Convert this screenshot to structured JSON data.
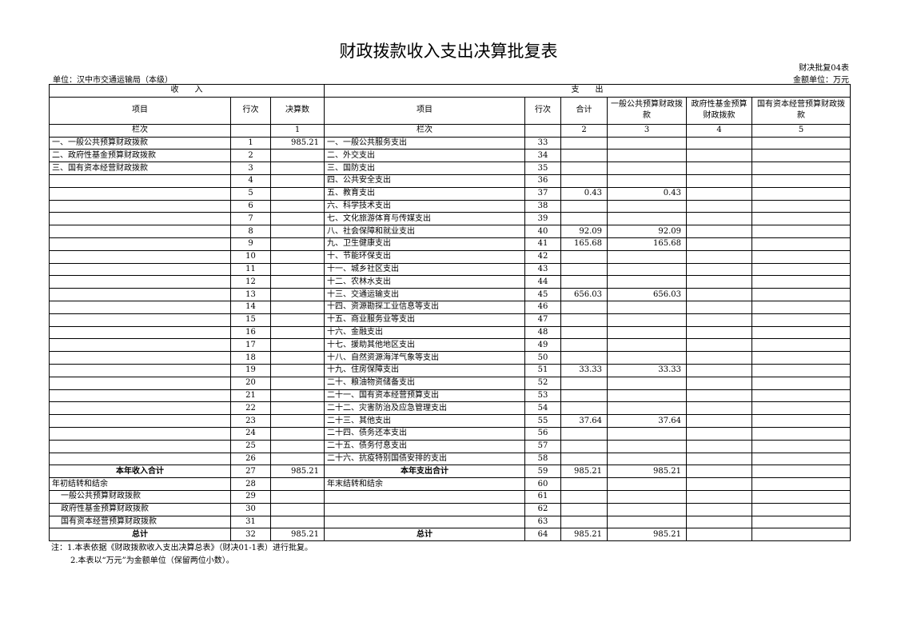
{
  "title": "财政拨款收入支出决算批复表",
  "form_code": "财决批复04表",
  "unit": "单位：汉中市交通运输局（本级）",
  "money_unit": "金额单位：万元",
  "header": {
    "income": "收　　入",
    "expense": "支　　出",
    "cols": [
      "项目",
      "行次",
      "决算数",
      "项目",
      "行次",
      "合计",
      "一般公共预算财政拨款",
      "政府性基金预算财政拨款",
      "国有资本经营预算财政拨款"
    ],
    "col_index": [
      "栏次",
      "",
      "1",
      "栏次",
      "",
      "2",
      "3",
      "4",
      "5"
    ]
  },
  "rows": [
    [
      "一、一般公共预算财政拨款",
      "1",
      "985.21",
      "一、一般公共服务支出",
      "33",
      "",
      "",
      "",
      ""
    ],
    [
      "二、政府性基金预算财政拨款",
      "2",
      "",
      "二、外交支出",
      "34",
      "",
      "",
      "",
      ""
    ],
    [
      "三、国有资本经营财政拨款",
      "3",
      "",
      "三、国防支出",
      "35",
      "",
      "",
      "",
      ""
    ],
    [
      "",
      "4",
      "",
      "四、公共安全支出",
      "36",
      "",
      "",
      "",
      ""
    ],
    [
      "",
      "5",
      "",
      "五、教育支出",
      "37",
      "0.43",
      "0.43",
      "",
      ""
    ],
    [
      "",
      "6",
      "",
      "六、科学技术支出",
      "38",
      "",
      "",
      "",
      ""
    ],
    [
      "",
      "7",
      "",
      "七、文化旅游体育与传媒支出",
      "39",
      "",
      "",
      "",
      ""
    ],
    [
      "",
      "8",
      "",
      "八、社会保障和就业支出",
      "40",
      "92.09",
      "92.09",
      "",
      ""
    ],
    [
      "",
      "9",
      "",
      "九、卫生健康支出",
      "41",
      "165.68",
      "165.68",
      "",
      ""
    ],
    [
      "",
      "10",
      "",
      "十、节能环保支出",
      "42",
      "",
      "",
      "",
      ""
    ],
    [
      "",
      "11",
      "",
      "十一、城乡社区支出",
      "43",
      "",
      "",
      "",
      ""
    ],
    [
      "",
      "12",
      "",
      "十二、农林水支出",
      "44",
      "",
      "",
      "",
      ""
    ],
    [
      "",
      "13",
      "",
      "十三、交通运输支出",
      "45",
      "656.03",
      "656.03",
      "",
      ""
    ],
    [
      "",
      "14",
      "",
      "十四、资源勘探工业信息等支出",
      "46",
      "",
      "",
      "",
      ""
    ],
    [
      "",
      "15",
      "",
      "十五、商业服务业等支出",
      "47",
      "",
      "",
      "",
      ""
    ],
    [
      "",
      "16",
      "",
      "十六、金融支出",
      "48",
      "",
      "",
      "",
      ""
    ],
    [
      "",
      "17",
      "",
      "十七、援助其他地区支出",
      "49",
      "",
      "",
      "",
      ""
    ],
    [
      "",
      "18",
      "",
      "十八、自然资源海洋气象等支出",
      "50",
      "",
      "",
      "",
      ""
    ],
    [
      "",
      "19",
      "",
      "十九、住房保障支出",
      "51",
      "33.33",
      "33.33",
      "",
      ""
    ],
    [
      "",
      "20",
      "",
      "二十、粮油物资储备支出",
      "52",
      "",
      "",
      "",
      ""
    ],
    [
      "",
      "21",
      "",
      "二十一、国有资本经营预算支出",
      "53",
      "",
      "",
      "",
      ""
    ],
    [
      "",
      "22",
      "",
      "二十二、灾害防治及应急管理支出",
      "54",
      "",
      "",
      "",
      ""
    ],
    [
      "",
      "23",
      "",
      "二十三、其他支出",
      "55",
      "37.64",
      "37.64",
      "",
      ""
    ],
    [
      "",
      "24",
      "",
      "二十四、债务还本支出",
      "56",
      "",
      "",
      "",
      ""
    ],
    [
      "",
      "25",
      "",
      "二十五、债务付息支出",
      "57",
      "",
      "",
      "",
      ""
    ],
    [
      "",
      "26",
      "",
      "二十六、抗疫特别国债安排的支出",
      "58",
      "",
      "",
      "",
      ""
    ],
    [
      "本年收入合计",
      "27",
      "985.21",
      "本年支出合计",
      "59",
      "985.21",
      "985.21",
      "",
      ""
    ],
    [
      "年初结转和结余",
      "28",
      "",
      "年末结转和结余",
      "60",
      "",
      "",
      "",
      ""
    ],
    [
      "一般公共预算财政拨款",
      "29",
      "",
      "",
      "61",
      "",
      "",
      "",
      ""
    ],
    [
      "政府性基金预算财政拨款",
      "30",
      "",
      "",
      "62",
      "",
      "",
      "",
      ""
    ],
    [
      "国有资本经营预算财政拨款",
      "31",
      "",
      "",
      "63",
      "",
      "",
      "",
      ""
    ],
    [
      "总计",
      "32",
      "985.21",
      "总计",
      "64",
      "985.21",
      "985.21",
      "",
      ""
    ]
  ],
  "notes": [
    "注：1.本表依据《财政拨款收入支出决算总表》（财决01-1表）进行批复。",
    "2.本表以“万元”为金额单位（保留两位小数）。"
  ]
}
